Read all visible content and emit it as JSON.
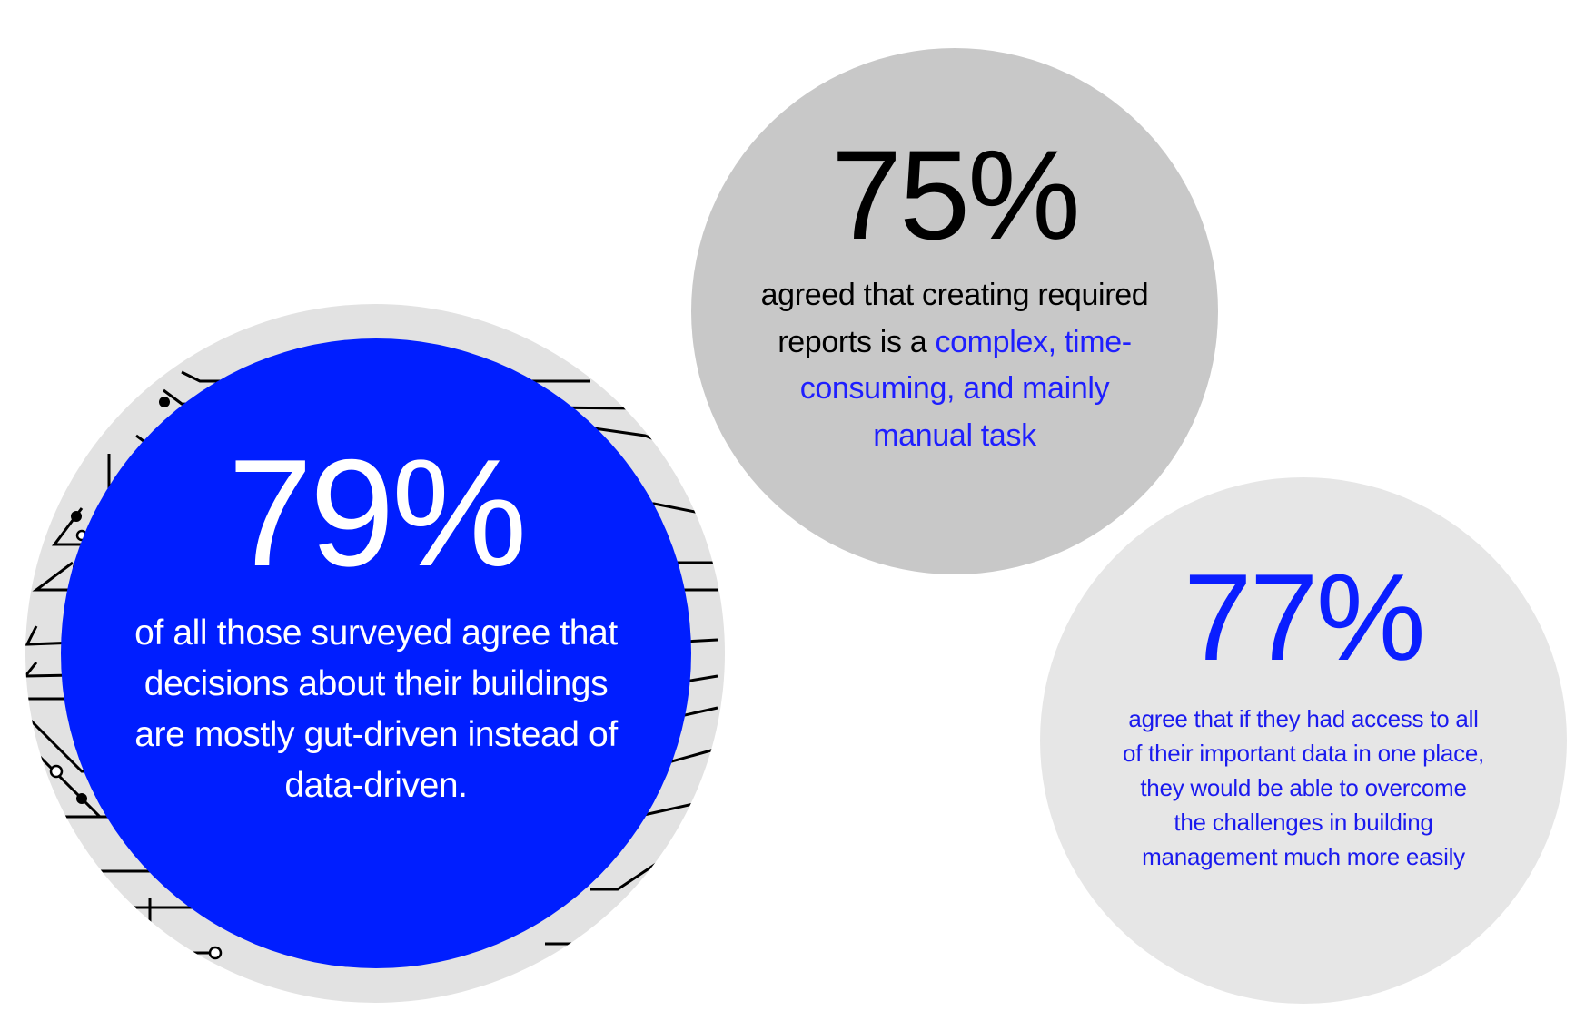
{
  "stats": [
    {
      "value": "79%",
      "text": "of all those surveyed agree that decisions about their buildings are mostly gut-driven instead of data-driven."
    },
    {
      "value": "75%",
      "text_plain": "agreed that creating required reports is a",
      "text_highlight": "complex, time-consuming, and mainly manual task"
    },
    {
      "value": "77%",
      "text": "agree that if they had access to all of their important data in one place, they would be able to overcome the challenges in building management much more easily"
    }
  ],
  "colors": {
    "blue": "#001EFF",
    "grey": "#C8C8C8",
    "light_grey": "#E6E6E6",
    "ring": "#E2E2E2"
  }
}
